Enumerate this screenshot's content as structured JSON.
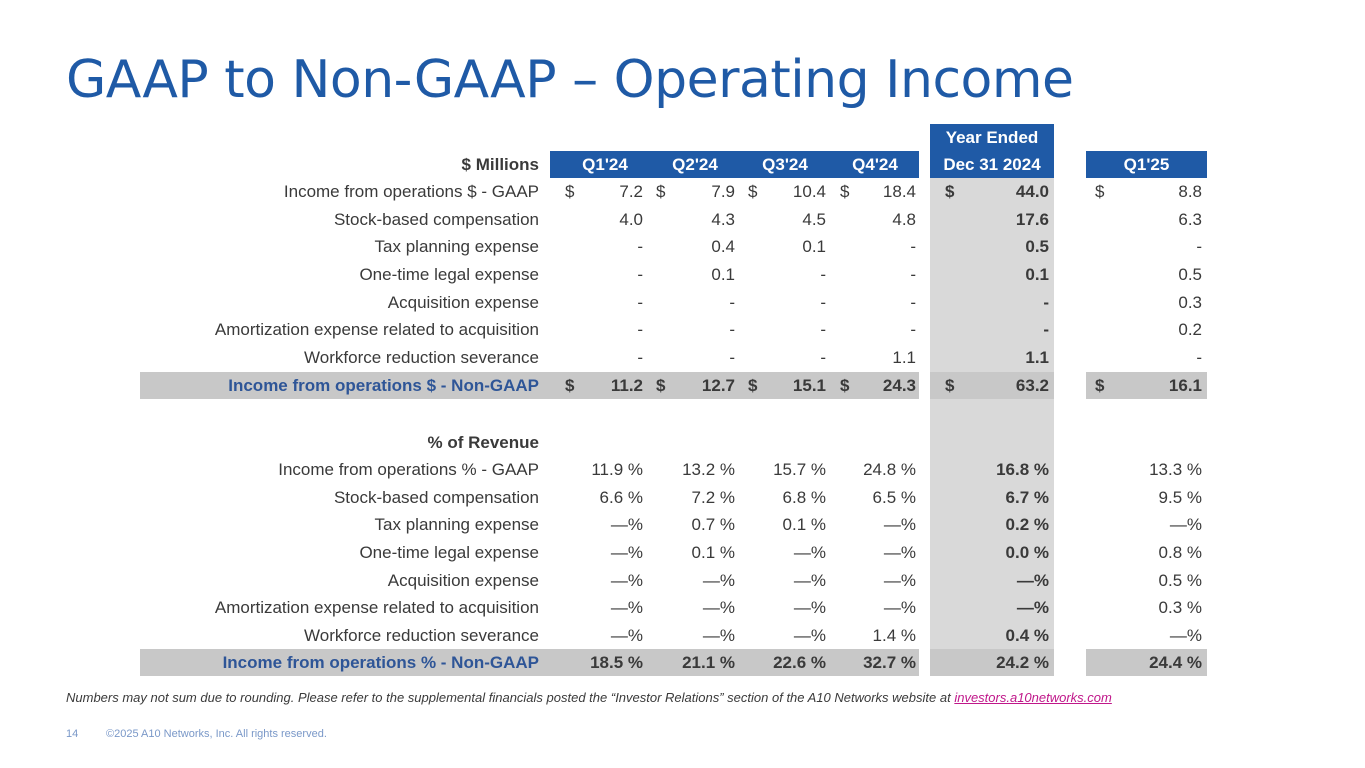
{
  "title": "GAAP to Non-GAAP – Operating Income",
  "header": {
    "row_label": "$ Millions",
    "columns": [
      "Q1'24",
      "Q2'24",
      "Q3'24",
      "Q4'24",
      "Dec 31 2024",
      "Q1'25"
    ],
    "year_ended": "Year Ended"
  },
  "dollar_sign": "$",
  "dollar_rows": [
    {
      "label": "Income from operations $ - GAAP",
      "values": [
        "7.2",
        "7.9",
        "10.4",
        "18.4",
        "44.0",
        "8.8"
      ]
    },
    {
      "label": "Stock-based compensation",
      "values": [
        "4.0",
        "4.3",
        "4.5",
        "4.8",
        "17.6",
        "6.3"
      ]
    },
    {
      "label": "Tax planning expense",
      "values": [
        "-",
        "0.4",
        "0.1",
        "-",
        "0.5",
        "-"
      ]
    },
    {
      "label": "One-time legal expense",
      "values": [
        "-",
        "0.1",
        "-",
        "-",
        "0.1",
        "0.5"
      ]
    },
    {
      "label": "Acquisition expense",
      "values": [
        "-",
        "-",
        "-",
        "-",
        "-",
        "0.3"
      ]
    },
    {
      "label": "Amortization expense related to acquisition",
      "values": [
        "-",
        "-",
        "-",
        "-",
        "-",
        "0.2"
      ]
    },
    {
      "label": "Workforce reduction severance",
      "values": [
        "-",
        "-",
        "-",
        "1.1",
        "1.1",
        "-"
      ]
    }
  ],
  "dollar_total": {
    "label": "Income from operations $ - Non-GAAP",
    "values": [
      "11.2",
      "12.7",
      "15.1",
      "24.3",
      "63.2",
      "16.1"
    ]
  },
  "pct_heading": "% of Revenue",
  "pct_rows": [
    {
      "label": "Income from operations % - GAAP",
      "values": [
        "11.9 %",
        "13.2 %",
        "15.7 %",
        "24.8 %",
        "16.8 %",
        "13.3 %"
      ]
    },
    {
      "label": "Stock-based compensation",
      "values": [
        "6.6 %",
        "7.2 %",
        "6.8 %",
        "6.5 %",
        "6.7 %",
        "9.5 %"
      ]
    },
    {
      "label": "Tax planning expense",
      "values": [
        "—%",
        "0.7 %",
        "0.1 %",
        "—%",
        "0.2 %",
        "—%"
      ]
    },
    {
      "label": "One-time legal expense",
      "values": [
        "—%",
        "0.1 %",
        "—%",
        "—%",
        "0.0 %",
        "0.8 %"
      ]
    },
    {
      "label": "Acquisition expense",
      "values": [
        "—%",
        "—%",
        "—%",
        "—%",
        "—%",
        "0.5 %"
      ]
    },
    {
      "label": "Amortization expense related to acquisition",
      "values": [
        "—%",
        "—%",
        "—%",
        "—%",
        "—%",
        "0.3 %"
      ]
    },
    {
      "label": "Workforce reduction severance",
      "values": [
        "—%",
        "—%",
        "—%",
        "1.4 %",
        "0.4 %",
        "—%"
      ]
    }
  ],
  "pct_total": {
    "label": "Income from operations % - Non-GAAP",
    "values": [
      "18.5 %",
      "21.1 %",
      "22.6 %",
      "32.7 %",
      "24.2 %",
      "24.4 %"
    ]
  },
  "footnote": {
    "text": "Numbers may not sum due to rounding. Please refer to the supplemental financials posted the “Investor Relations” section of the A10 Networks website at ",
    "link": "investors.a10networks.com"
  },
  "footer": {
    "page": "14",
    "copyright": "©2025 A10 Networks, Inc. All rights reserved."
  }
}
